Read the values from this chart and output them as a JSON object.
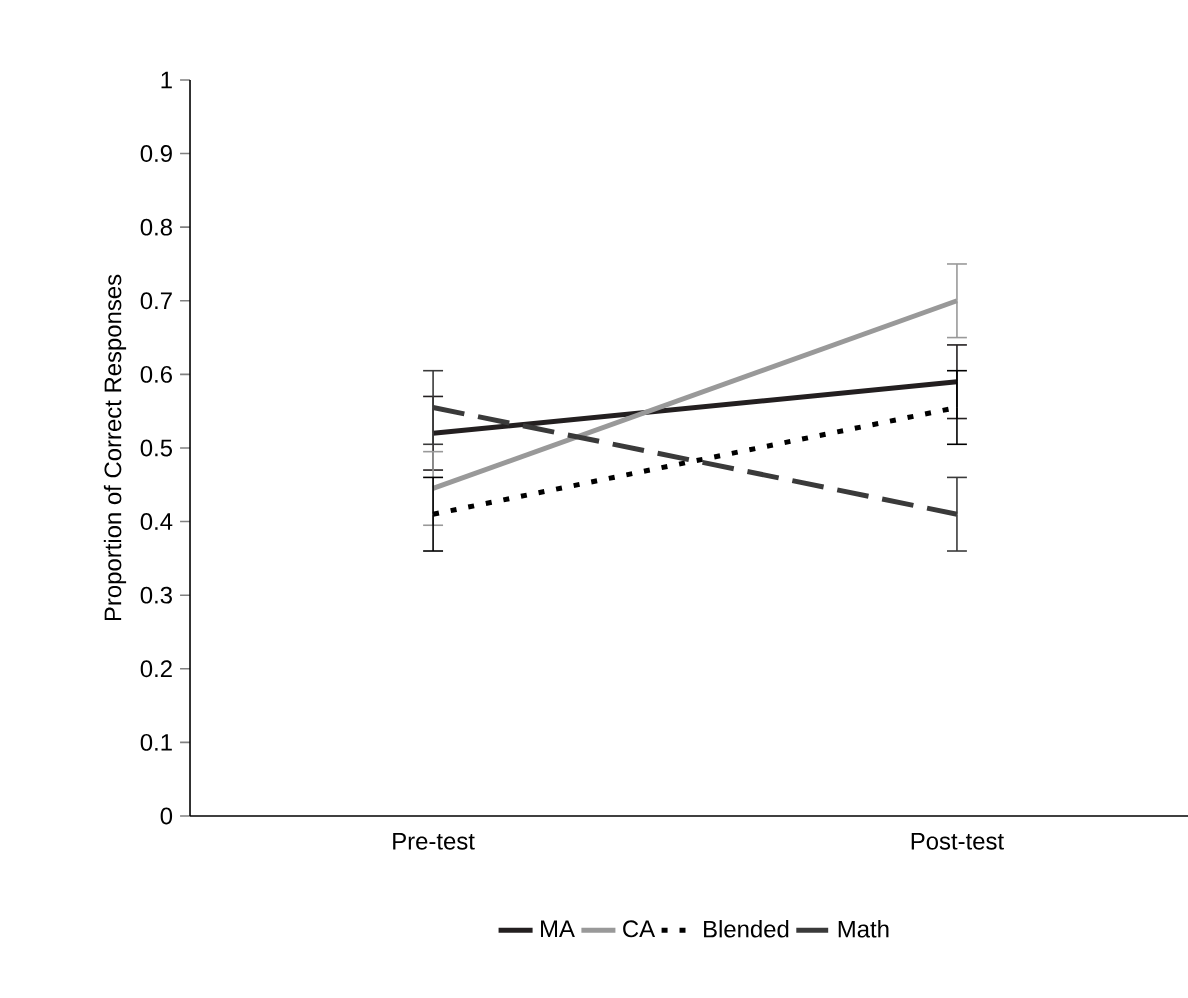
{
  "chart_data": {
    "type": "line",
    "ylabel": "Proportion of Correct Responses",
    "categories": [
      "Pre-test",
      "Post-test"
    ],
    "series": [
      {
        "name": "MA",
        "color": "#231f20",
        "line_style": "solid",
        "values": [
          0.52,
          0.59
        ],
        "errors": [
          0.05,
          0.05
        ]
      },
      {
        "name": "CA",
        "color": "#999999",
        "line_style": "solid",
        "values": [
          0.445,
          0.7
        ],
        "errors": [
          0.05,
          0.05
        ]
      },
      {
        "name": "Blended",
        "color": "#000000",
        "line_style": "dotted",
        "values": [
          0.41,
          0.555
        ],
        "errors": [
          0.05,
          0.05
        ]
      },
      {
        "name": "Math",
        "color": "#3a3a3a",
        "line_style": "dashed",
        "values": [
          0.555,
          0.41
        ],
        "errors": [
          0.05,
          0.05
        ]
      }
    ],
    "ylim": [
      0,
      1
    ],
    "yticks": [
      0,
      0.1,
      0.2,
      0.3,
      0.4,
      0.5,
      0.6,
      0.7,
      0.8,
      0.9,
      1
    ],
    "grid": false,
    "legend": "bottom",
    "marker": "none"
  }
}
